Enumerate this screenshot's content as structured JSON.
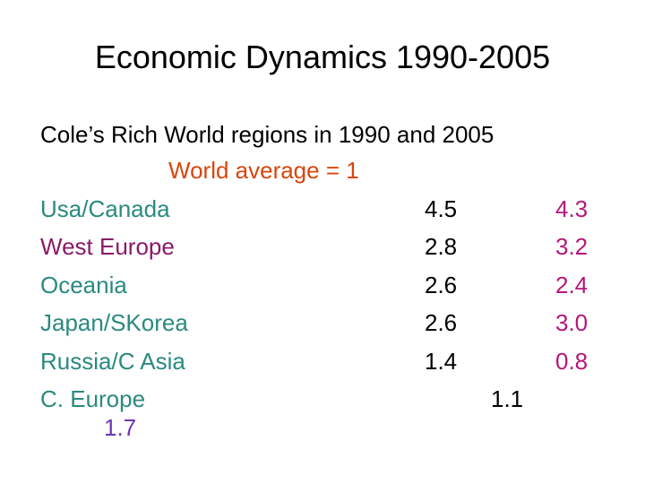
{
  "slide": {
    "title": "Economic Dynamics 1990-2005",
    "subtitle": "Cole’s Rich World regions in 1990 and 2005",
    "note": "World average = 1"
  },
  "colors": {
    "note": "#d9460b",
    "label": "#2a8a80",
    "label_alt": "#8a1a6a",
    "value_2005": "#b5177a",
    "value_last": "#6d35b5",
    "text": "#000000"
  },
  "regions": [
    {
      "name": "Usa/Canada",
      "v1990": "4.5",
      "v2005": "4.3"
    },
    {
      "name": "West Europe",
      "v1990": "2.8",
      "v2005": "3.2"
    },
    {
      "name": "Oceania",
      "v1990": "2.6",
      "v2005": "2.4"
    },
    {
      "name": "Japan/SKorea",
      "v1990": "2.6",
      "v2005": "3.0"
    },
    {
      "name": "Russia/C Asia",
      "v1990": "1.4",
      "v2005": "0.8"
    },
    {
      "name": "C. Europe",
      "v1990": "1.1",
      "v2005": "1.7"
    }
  ]
}
